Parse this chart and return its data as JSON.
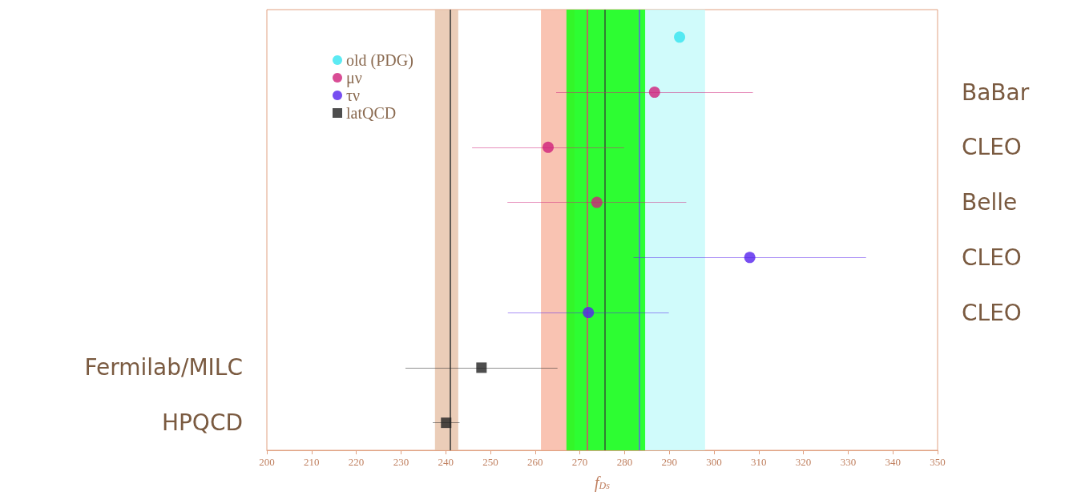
{
  "chart_data": {
    "type": "scatter",
    "orientation": "horizontal",
    "xlabel": "f$_{Ds}$",
    "categories": [
      null,
      null,
      null,
      null,
      null,
      null,
      "Fermilab/MILC",
      "HPQCD"
    ],
    "y2_categories": [
      null,
      "BaBar",
      "CLEO",
      "Belle",
      "CLEO",
      "CLEO",
      null,
      null
    ],
    "xlim": [
      200,
      350
    ],
    "xticks": [
      200,
      210,
      220,
      230,
      240,
      250,
      260,
      270,
      280,
      290,
      300,
      310,
      320,
      330,
      340,
      350
    ],
    "grid": false,
    "legend": "top left",
    "marker": "circle",
    "series": [
      {
        "name": "old (PDG)",
        "color": "#33e5f0",
        "values": [
          292.3,
          null,
          null,
          null,
          null,
          null,
          null,
          null
        ]
      },
      {
        "name": "μν",
        "color": "#d0207a",
        "values": [
          null,
          286.7,
          262.9,
          273.8,
          null,
          null,
          null,
          null
        ],
        "errors": [
          null,
          22,
          17,
          20,
          null,
          null,
          null,
          null
        ]
      },
      {
        "name": "τν",
        "color": "#5522ee",
        "values": [
          null,
          null,
          null,
          null,
          308,
          271.9,
          null,
          null
        ],
        "errors": [
          null,
          null,
          null,
          null,
          26,
          18,
          null,
          null
        ]
      },
      {
        "name": "latQCD",
        "color": "#222222",
        "marker": "square",
        "values": [
          null,
          null,
          null,
          null,
          null,
          null,
          248,
          240.1
        ],
        "errors": [
          null,
          null,
          null,
          null,
          null,
          null,
          17,
          3
        ]
      }
    ],
    "bands": [
      {
        "axis": "x",
        "from": 261.3,
        "to": 282.8,
        "color": "#f8b8a4"
      },
      {
        "axis": "x",
        "from": 268.8,
        "to": 298,
        "color": "#c8fafa"
      },
      {
        "axis": "x",
        "from": 237.6,
        "to": 242.8,
        "color": "#e8c4ac"
      },
      {
        "axis": "x",
        "from": 267,
        "to": 284.6,
        "color": "#11ff11"
      }
    ],
    "ref_lines": [
      {
        "axis": "x",
        "value": 275.6,
        "color": "#335533"
      },
      {
        "axis": "x",
        "value": 271.7,
        "color": "#e04070"
      },
      {
        "axis": "x",
        "value": 283.3,
        "color": "#6060ee"
      },
      {
        "axis": "x",
        "value": 241,
        "color": "#333333"
      }
    ]
  }
}
